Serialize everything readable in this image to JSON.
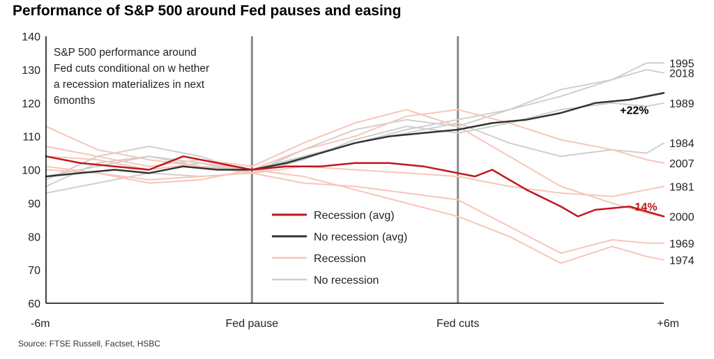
{
  "title": "Performance of S&P 500 around Fed pauses and easing",
  "source": "Source: FTSE Russell, Factset, HSBC",
  "chart_data": {
    "type": "line",
    "ylim": [
      60,
      140
    ],
    "yticks": [
      "60",
      "70",
      "80",
      "90",
      "100",
      "110",
      "120",
      "130",
      "140"
    ],
    "x_range": [
      0,
      252
    ],
    "xticks": [
      {
        "pos": 0,
        "label": "-6m"
      },
      {
        "pos": 84,
        "label": "Fed pause"
      },
      {
        "pos": 168,
        "label": "Fed cuts"
      },
      {
        "pos": 252,
        "label": "+6m"
      }
    ],
    "vlines": [
      84,
      168
    ],
    "annotation": [
      "S&P 500 performance around",
      "Fed cuts conditional on w hether",
      "a recession materializes in next",
      "6months"
    ],
    "legend": [
      {
        "label": "Recession (avg)",
        "color": "#c0161d",
        "width": 2.5
      },
      {
        "label": "No recession (avg)",
        "color": "#333333",
        "width": 2.5
      },
      {
        "label": "Recession",
        "color": "#f7c6b8",
        "width": 2
      },
      {
        "label": "No recession",
        "color": "#cfcfcf",
        "width": 2
      }
    ],
    "value_labels": [
      {
        "text": "+22%",
        "x": 240,
        "y": 118,
        "color": "#000000"
      },
      {
        "text": "-14%",
        "x": 244,
        "y": 89,
        "color": "#c0161d"
      }
    ],
    "series": [
      {
        "name": "1995",
        "group": "No recession",
        "x": [
          0,
          21,
          42,
          63,
          84,
          105,
          126,
          147,
          168,
          189,
          210,
          231,
          245,
          252
        ],
        "y": [
          93,
          96,
          99,
          98,
          99,
          104,
          108,
          112,
          115,
          118,
          122,
          127,
          132,
          132
        ]
      },
      {
        "name": "2018",
        "group": "No recession",
        "x": [
          0,
          21,
          42,
          63,
          84,
          105,
          126,
          147,
          168,
          189,
          210,
          231,
          245,
          252
        ],
        "y": [
          97,
          104,
          107,
          104,
          99,
          106,
          112,
          115,
          113,
          118,
          124,
          127,
          130,
          129
        ]
      },
      {
        "name": "1989",
        "group": "No recession",
        "x": [
          0,
          21,
          42,
          63,
          84,
          105,
          126,
          147,
          168,
          189,
          210,
          231,
          245,
          252
        ],
        "y": [
          95,
          102,
          104,
          102,
          99,
          103,
          109,
          113,
          111,
          114,
          118,
          120,
          119,
          120
        ]
      },
      {
        "name": "1984",
        "group": "No recession",
        "x": [
          0,
          21,
          42,
          63,
          84,
          105,
          126,
          147,
          168,
          189,
          210,
          231,
          245,
          252
        ],
        "y": [
          98,
          101,
          104,
          101,
          100,
          104,
          108,
          111,
          114,
          108,
          104,
          106,
          105,
          108
        ]
      },
      {
        "name": "1981",
        "group": "Recession",
        "x": [
          0,
          21,
          42,
          63,
          84,
          105,
          126,
          147,
          168,
          189,
          210,
          231,
          245,
          252
        ],
        "y": [
          113,
          106,
          103,
          101,
          99,
          101,
          100,
          99,
          98,
          95,
          93,
          92,
          94,
          95
        ]
      },
      {
        "name": "2007",
        "group": "Recession",
        "x": [
          0,
          21,
          42,
          63,
          84,
          105,
          126,
          147,
          168,
          189,
          210,
          231,
          245,
          252
        ],
        "y": [
          104,
          103,
          100,
          102,
          100,
          106,
          110,
          116,
          118,
          114,
          109,
          106,
          103,
          102
        ]
      },
      {
        "name": "2000",
        "group": "Recession",
        "x": [
          0,
          21,
          42,
          63,
          84,
          105,
          126,
          147,
          168,
          189,
          210,
          231,
          245,
          252
        ],
        "y": [
          107,
          104,
          101,
          103,
          101,
          108,
          114,
          118,
          113,
          104,
          95,
          90,
          87,
          86
        ]
      },
      {
        "name": "1969",
        "group": "Recession",
        "x": [
          0,
          21,
          42,
          63,
          84,
          105,
          126,
          147,
          168,
          189,
          210,
          231,
          245,
          252
        ],
        "y": [
          100,
          99,
          97,
          98,
          99,
          96,
          95,
          93,
          91,
          83,
          75,
          79,
          78,
          78
        ]
      },
      {
        "name": "1974",
        "group": "Recession",
        "x": [
          0,
          21,
          42,
          63,
          84,
          105,
          126,
          147,
          168,
          189,
          210,
          231,
          245,
          252
        ],
        "y": [
          101,
          99,
          96,
          97,
          100,
          98,
          94,
          90,
          86,
          80,
          72,
          77,
          74,
          73
        ]
      },
      {
        "name": "No recession (avg)",
        "group": "No recession (avg)",
        "x": [
          0,
          14,
          28,
          42,
          56,
          70,
          84,
          98,
          112,
          126,
          140,
          154,
          168,
          182,
          196,
          210,
          224,
          238,
          252
        ],
        "y": [
          98,
          99,
          100,
          99,
          101,
          100,
          100,
          102,
          105,
          108,
          110,
          111,
          112,
          114,
          115,
          117,
          120,
          121,
          123
        ]
      },
      {
        "name": "Recession (avg)",
        "group": "Recession (avg)",
        "x": [
          0,
          14,
          28,
          42,
          56,
          70,
          84,
          98,
          112,
          126,
          140,
          154,
          168,
          175,
          182,
          196,
          210,
          217,
          224,
          238,
          252
        ],
        "y": [
          104,
          102,
          101,
          100,
          104,
          102,
          100,
          101,
          101,
          102,
          102,
          101,
          99,
          98,
          100,
          94,
          89,
          86,
          88,
          89,
          86
        ]
      }
    ]
  }
}
